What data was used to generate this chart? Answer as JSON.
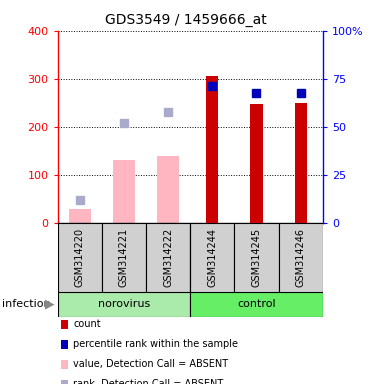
{
  "title": "GDS3549 / 1459666_at",
  "samples": [
    "GSM314220",
    "GSM314221",
    "GSM314222",
    "GSM314244",
    "GSM314245",
    "GSM314246"
  ],
  "count_values": [
    null,
    null,
    null,
    305,
    248,
    250
  ],
  "percentile_values": [
    null,
    null,
    null,
    285,
    270,
    270
  ],
  "value_absent": [
    28,
    130,
    138,
    null,
    null,
    null
  ],
  "rank_absent": [
    47,
    207,
    230,
    null,
    null,
    null
  ],
  "ylim_left": [
    0,
    400
  ],
  "yticks_left": [
    0,
    100,
    200,
    300,
    400
  ],
  "yticks_right": [
    0,
    25,
    50,
    75,
    100
  ],
  "yticklabels_right": [
    "0",
    "25",
    "50",
    "75",
    "100%"
  ],
  "count_color": "#CC0000",
  "percentile_color": "#0000BB",
  "value_absent_color": "#FFB6C1",
  "rank_absent_color": "#AAAACC",
  "norovirus_color": "#AAEAAA",
  "control_color": "#66EE66",
  "legend_items": [
    {
      "label": "count",
      "color": "#CC0000"
    },
    {
      "label": "percentile rank within the sample",
      "color": "#0000BB"
    },
    {
      "label": "value, Detection Call = ABSENT",
      "color": "#FFB6C1"
    },
    {
      "label": "rank, Detection Call = ABSENT",
      "color": "#AAAACC"
    }
  ]
}
